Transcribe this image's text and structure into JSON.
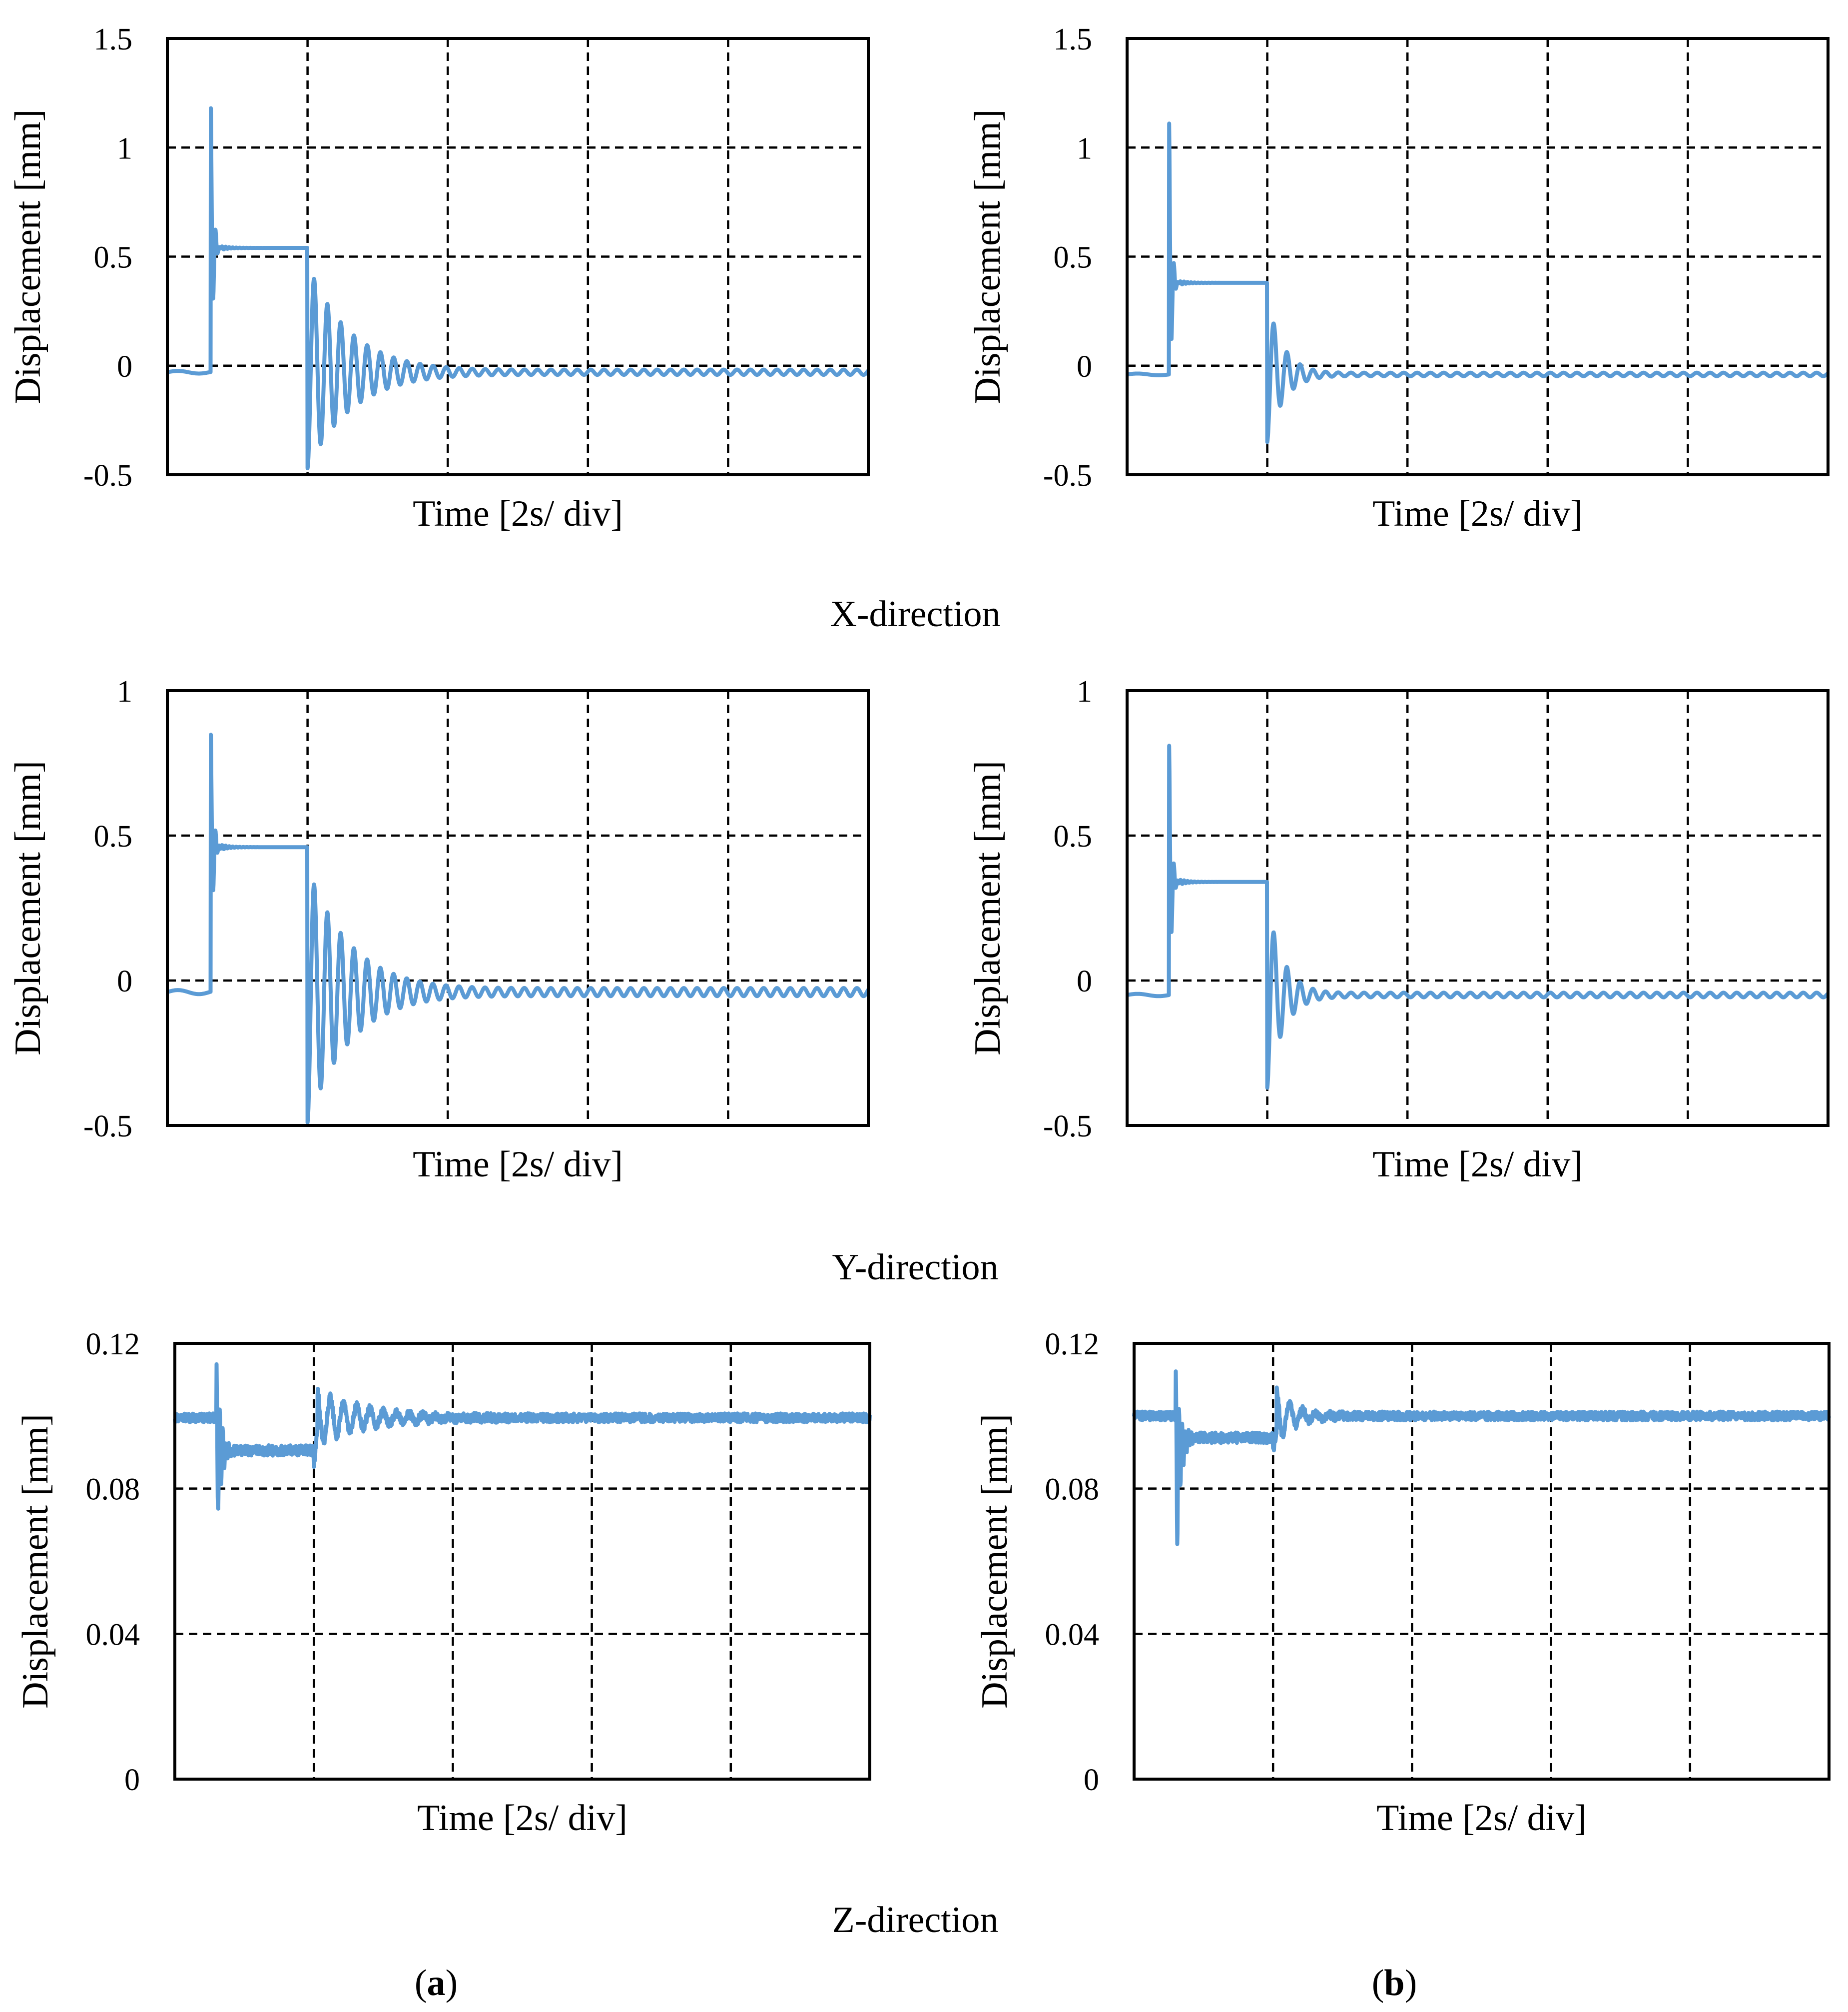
{
  "figure": {
    "row_captions": [
      "X-direction",
      "Y-direction",
      "Z-direction"
    ],
    "panel_labels": [
      {
        "open": "(",
        "letter": "a",
        "close": ")"
      },
      {
        "open": "(",
        "letter": "b",
        "close": ")"
      }
    ]
  },
  "colors": {
    "series": "#5B9BD5",
    "axis": "#000000",
    "grid": "#000000",
    "background": "#ffffff"
  },
  "chart_data": [
    {
      "id": "x-a",
      "type": "line",
      "row": "X-direction",
      "column": "a",
      "xlabel": "Time [2s/ div]",
      "ylabel": "Displacement [mm]",
      "xlim": [
        0,
        10
      ],
      "ylim": [
        -0.5,
        1.5
      ],
      "yticks": [
        -0.5,
        0,
        0.5,
        1,
        1.5
      ],
      "ytick_labels": [
        "-0.5",
        "0",
        "0.5",
        "1",
        "1.5"
      ],
      "grid": true,
      "x_division_s": 2,
      "num_divisions": 5,
      "signal": {
        "base": -0.03,
        "step_on": 0.62,
        "step_off": 2.0,
        "plateau": 0.54,
        "overshoot_peak": 1.2,
        "min": -0.47,
        "decay_amp": 0.47,
        "decay_period": 0.19,
        "settle_time": 4.0,
        "ripple_amp": 0.012,
        "ripple_period": 0.19
      }
    },
    {
      "id": "x-b",
      "type": "line",
      "row": "X-direction",
      "column": "b",
      "xlabel": "Time [2s/ div]",
      "ylabel": "Displacement [mm]",
      "xlim": [
        0,
        10
      ],
      "ylim": [
        -0.5,
        1.5
      ],
      "yticks": [
        -0.5,
        0,
        0.5,
        1,
        1.5
      ],
      "ytick_labels": [
        "-0.5",
        "0",
        "0.5",
        "1",
        "1.5"
      ],
      "grid": true,
      "x_division_s": 2,
      "num_divisions": 5,
      "signal": {
        "base": -0.04,
        "step_on": 0.6,
        "step_off": 2.0,
        "plateau": 0.38,
        "overshoot_peak": 1.11,
        "min": -0.35,
        "decay_amp": 0.33,
        "decay_period": 0.19,
        "settle_time": 2.75,
        "ripple_amp": 0.008,
        "ripple_period": 0.19
      }
    },
    {
      "id": "y-a",
      "type": "line",
      "row": "Y-direction",
      "column": "a",
      "xlabel": "Time [2s/ div]",
      "ylabel": "Displacement [mm]",
      "xlim": [
        0,
        10
      ],
      "ylim": [
        -0.5,
        1
      ],
      "yticks": [
        -0.5,
        0,
        0.5,
        1
      ],
      "ytick_labels": [
        "-0.5",
        "0",
        "0.5",
        "1"
      ],
      "grid": true,
      "x_division_s": 2,
      "num_divisions": 5,
      "signal": {
        "base": -0.04,
        "step_on": 0.62,
        "step_off": 2.0,
        "plateau": 0.46,
        "overshoot_peak": 0.86,
        "min": -0.49,
        "decay_amp": 0.44,
        "decay_period": 0.19,
        "settle_time": 4.0,
        "ripple_amp": 0.014,
        "ripple_period": 0.19
      }
    },
    {
      "id": "y-b",
      "type": "line",
      "row": "Y-direction",
      "column": "b",
      "xlabel": "Time [2s/ div]",
      "ylabel": "Displacement [mm]",
      "xlim": [
        0,
        10
      ],
      "ylim": [
        -0.5,
        1
      ],
      "yticks": [
        -0.5,
        0,
        0.5,
        1
      ],
      "ytick_labels": [
        "-0.5",
        "0",
        "0.5",
        "1"
      ],
      "grid": true,
      "x_division_s": 2,
      "num_divisions": 5,
      "signal": {
        "base": -0.05,
        "step_on": 0.6,
        "step_off": 2.0,
        "plateau": 0.34,
        "overshoot_peak": 0.81,
        "min": -0.37,
        "decay_amp": 0.32,
        "decay_period": 0.19,
        "settle_time": 2.75,
        "ripple_amp": 0.008,
        "ripple_period": 0.19
      }
    },
    {
      "id": "z-a",
      "type": "line",
      "row": "Z-direction",
      "column": "a",
      "xlabel": "Time [2s/ div]",
      "ylabel": "Displacement [mm]",
      "xlim": [
        0,
        10
      ],
      "ylim": [
        0,
        0.12
      ],
      "yticks": [
        0,
        0.04,
        0.08,
        0.12
      ],
      "ytick_labels": [
        "0",
        "0.04",
        "0.08",
        "0.12"
      ],
      "grid": true,
      "x_division_s": 2,
      "num_divisions": 5,
      "signal": {
        "base": 0.0995,
        "disturb_on": 0.6,
        "disturb_off": 2.0,
        "mid_level": 0.0905,
        "spike_max": 0.113,
        "spike_min": 0.066,
        "decay_amp": 0.008,
        "decay_period": 0.19,
        "settle_time": 4.0,
        "noise_amp": 0.0012
      }
    },
    {
      "id": "z-b",
      "type": "line",
      "row": "Z-direction",
      "column": "b",
      "xlabel": "Time [2s/ div]",
      "ylabel": "Displacement [mm]",
      "xlim": [
        0,
        10
      ],
      "ylim": [
        0,
        0.12
      ],
      "yticks": [
        0,
        0.04,
        0.08,
        0.12
      ],
      "ytick_labels": [
        "0",
        "0.04",
        "0.08",
        "0.12"
      ],
      "grid": true,
      "x_division_s": 2,
      "num_divisions": 5,
      "signal": {
        "base": 0.1,
        "disturb_on": 0.6,
        "disturb_off": 2.0,
        "mid_level": 0.094,
        "spike_max": 0.111,
        "spike_min": 0.053,
        "decay_amp": 0.009,
        "decay_period": 0.19,
        "settle_time": 2.75,
        "noise_amp": 0.0012
      }
    }
  ]
}
